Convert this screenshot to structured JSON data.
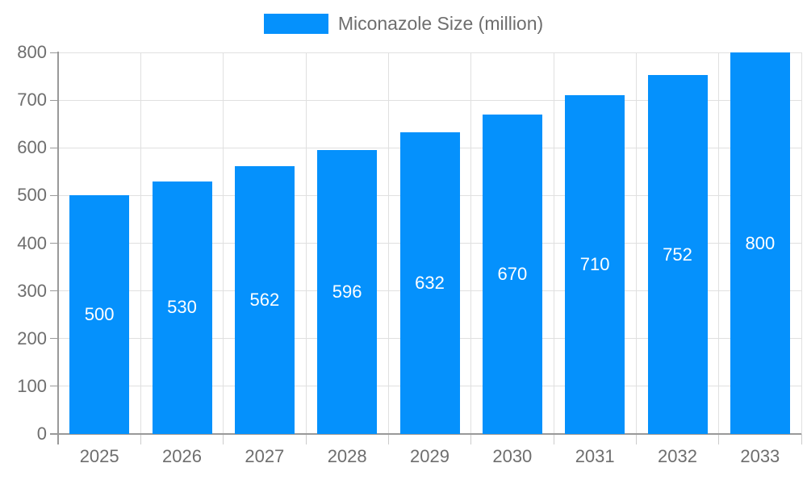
{
  "chart_data": {
    "type": "bar",
    "title": "Miconazole Size (million)",
    "categories": [
      "2025",
      "2026",
      "2027",
      "2028",
      "2029",
      "2030",
      "2031",
      "2032",
      "2033"
    ],
    "values": [
      500,
      530,
      562,
      596,
      632,
      670,
      710,
      752,
      800
    ],
    "xlabel": "",
    "ylabel": "",
    "ylim": [
      0,
      800
    ],
    "ytick_step": 100,
    "grid": true,
    "legend_position": "top",
    "bar_label_position": "inside-middle",
    "colors": {
      "bar": "#0591fc",
      "bar_label": "#ffffff",
      "axis": "#999999",
      "grid": "#e0e0e0",
      "tick": "#999999",
      "sub_tick": "#cccccc",
      "text": "#6e6e6e"
    }
  }
}
